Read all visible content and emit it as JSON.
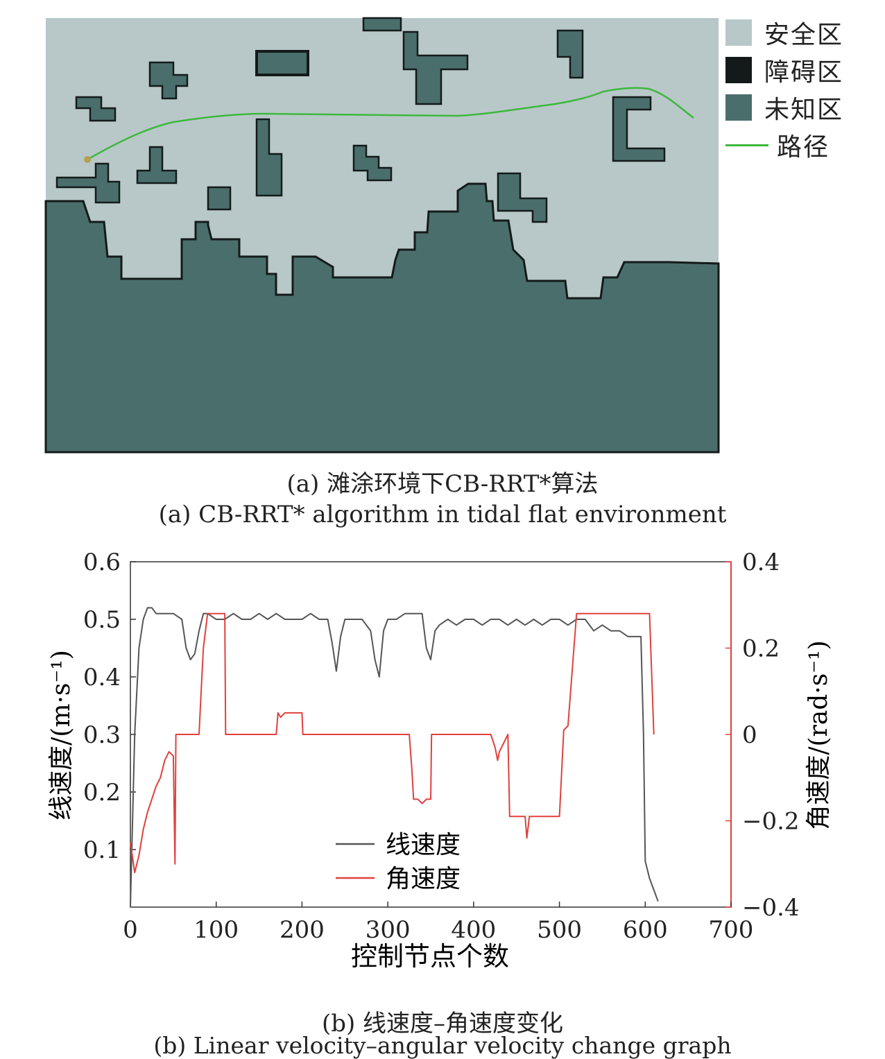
{
  "panel_a": {
    "legend": [
      {
        "label": "安全区",
        "color": "#b8c8c8"
      },
      {
        "label": "障碍区",
        "color": "#141a1a"
      },
      {
        "label": "未知区",
        "color": "#4a6e6c"
      },
      {
        "label": "路径",
        "color": "#3db83d"
      }
    ],
    "caption_cn": "(a) 滩涂环境下CB-RRT*算法",
    "caption_en": "(a) CB-RRT* algorithm in tidal flat environment"
  },
  "panel_b": {
    "caption_cn": "(b) 线速度–角速度变化",
    "caption_en": "(b) Linear velocity–angular velocity change graph"
  },
  "chart_data": {
    "type": "line",
    "xlabel": "控制节点个数",
    "ylabel_left": "线速度/(m·s⁻¹)",
    "ylabel_right": "角速度/(rad·s⁻¹)",
    "xlim": [
      0,
      700
    ],
    "ylim_left": [
      0,
      0.6
    ],
    "ylim_right": [
      -0.4,
      0.4
    ],
    "x_ticks": [
      "0",
      "100",
      "200",
      "300",
      "400",
      "500",
      "600",
      "700"
    ],
    "y_left_ticks": [
      "0.1",
      "0.2",
      "0.3",
      "0.4",
      "0.5",
      "0.6"
    ],
    "y_right_ticks": [
      "−0.4",
      "−0.2",
      "0",
      "0.2",
      "0.4"
    ],
    "legend": {
      "position": "bottom-center"
    },
    "series": [
      {
        "name": "线速度",
        "axis": "left",
        "color": "#555555",
        "x": [
          0,
          5,
          10,
          15,
          20,
          25,
          30,
          40,
          50,
          60,
          65,
          70,
          75,
          80,
          85,
          90,
          100,
          110,
          120,
          130,
          140,
          150,
          160,
          170,
          180,
          190,
          200,
          210,
          220,
          230,
          235,
          240,
          245,
          250,
          260,
          270,
          280,
          285,
          290,
          295,
          300,
          310,
          320,
          330,
          340,
          345,
          350,
          355,
          360,
          370,
          380,
          390,
          400,
          410,
          420,
          430,
          440,
          450,
          460,
          470,
          480,
          490,
          500,
          510,
          520,
          530,
          540,
          550,
          560,
          570,
          580,
          590,
          595,
          598,
          600,
          605,
          610,
          615
        ],
        "y": [
          0,
          0.3,
          0.45,
          0.5,
          0.52,
          0.52,
          0.51,
          0.51,
          0.51,
          0.5,
          0.45,
          0.43,
          0.44,
          0.48,
          0.51,
          0.51,
          0.5,
          0.5,
          0.51,
          0.5,
          0.5,
          0.51,
          0.5,
          0.51,
          0.5,
          0.5,
          0.5,
          0.51,
          0.5,
          0.5,
          0.46,
          0.41,
          0.47,
          0.5,
          0.5,
          0.5,
          0.48,
          0.43,
          0.4,
          0.48,
          0.5,
          0.5,
          0.51,
          0.51,
          0.51,
          0.45,
          0.43,
          0.48,
          0.49,
          0.5,
          0.49,
          0.5,
          0.5,
          0.49,
          0.5,
          0.5,
          0.49,
          0.5,
          0.49,
          0.5,
          0.49,
          0.5,
          0.5,
          0.49,
          0.5,
          0.5,
          0.48,
          0.49,
          0.48,
          0.48,
          0.47,
          0.47,
          0.47,
          0.3,
          0.08,
          0.05,
          0.03,
          0.01
        ]
      },
      {
        "name": "角速度",
        "axis": "right",
        "color": "#e0403c",
        "x": [
          0,
          5,
          10,
          15,
          20,
          25,
          30,
          35,
          40,
          45,
          50,
          52,
          53,
          55,
          60,
          70,
          80,
          82,
          85,
          90,
          95,
          100,
          110,
          111,
          120,
          130,
          140,
          150,
          160,
          170,
          172,
          175,
          180,
          190,
          200,
          201,
          210,
          220,
          230,
          240,
          250,
          260,
          270,
          280,
          290,
          300,
          320,
          325,
          328,
          330,
          335,
          340,
          345,
          350,
          351,
          360,
          370,
          380,
          390,
          400,
          410,
          420,
          425,
          428,
          430,
          435,
          440,
          442,
          445,
          450,
          460,
          462,
          465,
          470,
          480,
          490,
          500,
          505,
          510,
          515,
          520,
          525,
          530,
          540,
          550,
          560,
          570,
          580,
          590,
          600,
          605,
          610
        ],
        "y": [
          -0.25,
          -0.32,
          -0.28,
          -0.22,
          -0.18,
          -0.15,
          -0.12,
          -0.1,
          -0.06,
          -0.04,
          -0.05,
          -0.3,
          0,
          0,
          0,
          0,
          0,
          0.08,
          0.2,
          0.28,
          0.28,
          0.28,
          0.28,
          0,
          0,
          0,
          0,
          0,
          0,
          0,
          0.05,
          0.04,
          0.05,
          0.05,
          0.05,
          0,
          0,
          0,
          0,
          0,
          0,
          0,
          0,
          0,
          0,
          0,
          0,
          0,
          -0.08,
          -0.15,
          -0.15,
          -0.16,
          -0.15,
          -0.15,
          0,
          0,
          0,
          0,
          0,
          0,
          0,
          0,
          -0.03,
          -0.06,
          -0.04,
          -0.02,
          0,
          -0.19,
          -0.19,
          -0.19,
          -0.19,
          -0.24,
          -0.19,
          -0.19,
          -0.19,
          -0.19,
          -0.19,
          0.01,
          0.02,
          0.15,
          0.28,
          0.28,
          0.28,
          0.28,
          0.28,
          0.28,
          0.28,
          0.28,
          0.28,
          0.28,
          0.28,
          0
        ]
      }
    ]
  }
}
